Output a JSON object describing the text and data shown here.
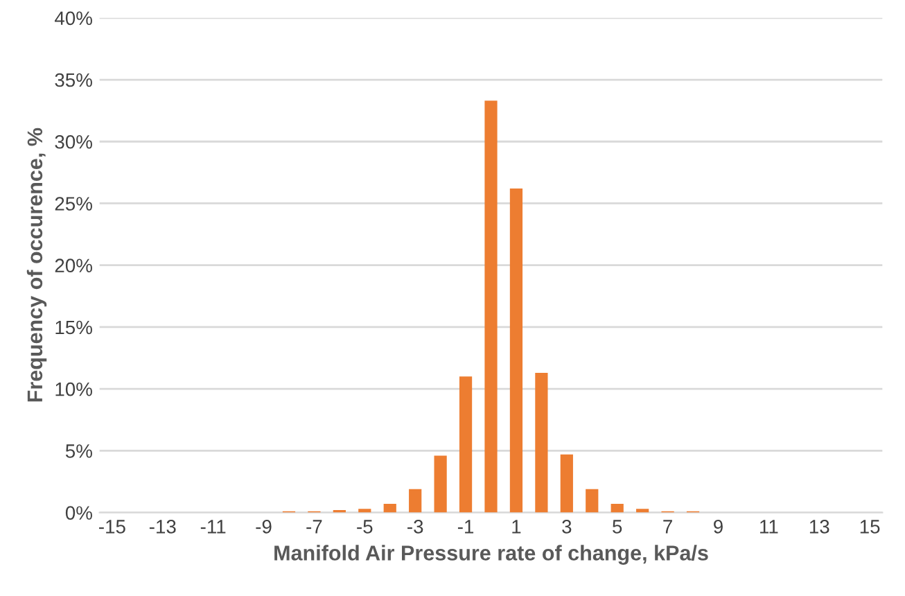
{
  "chart_data": {
    "type": "bar",
    "xlabel": "Manifold Air Pressure rate of change, kPa/s",
    "ylabel": "Frequency of occurence, %",
    "categories": [
      "-15",
      null,
      "-13",
      null,
      "-11",
      null,
      "-9",
      null,
      "-7",
      null,
      "-5",
      null,
      "-3",
      null,
      "-1",
      null,
      "1",
      null,
      "3",
      null,
      "5",
      null,
      "7",
      null,
      "9",
      null,
      "11",
      null,
      "13",
      null,
      "15"
    ],
    "values": [
      0,
      0,
      0,
      0,
      0,
      0,
      0,
      0.1,
      0.1,
      0.2,
      0.3,
      0.7,
      1.9,
      4.6,
      11.0,
      33.3,
      26.2,
      11.3,
      4.7,
      1.9,
      0.7,
      0.3,
      0.1,
      0.1,
      0,
      0,
      0,
      0,
      0,
      0,
      0
    ],
    "color": "#ed7d31",
    "ylim": [
      0,
      40
    ],
    "yticks": [
      {
        "value": 0,
        "label": "0%"
      },
      {
        "value": 5,
        "label": "5%"
      },
      {
        "value": 10,
        "label": "10%"
      },
      {
        "value": 15,
        "label": "15%"
      },
      {
        "value": 20,
        "label": "20%"
      },
      {
        "value": 25,
        "label": "25%"
      },
      {
        "value": 30,
        "label": "30%"
      },
      {
        "value": 35,
        "label": "35%"
      },
      {
        "value": 40,
        "label": "40%"
      }
    ],
    "grid": "y"
  }
}
